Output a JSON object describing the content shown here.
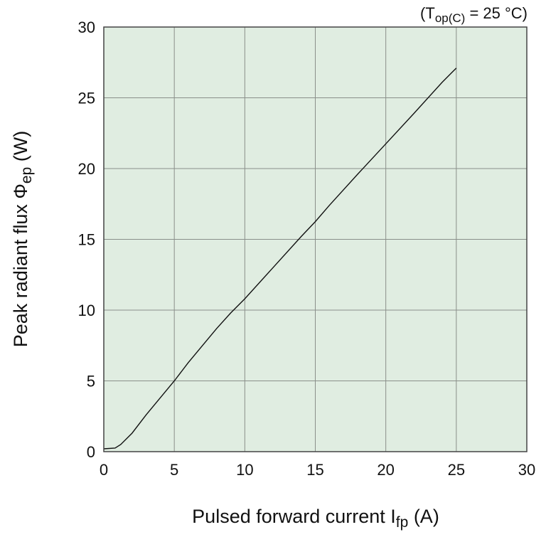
{
  "chart_data": {
    "type": "line",
    "annotation": {
      "prefix": "(T",
      "sub": "op(C)",
      "suffix": " = 25 °C)"
    },
    "xlabel": {
      "main": "Pulsed forward current I",
      "sub": "fp",
      "unit": " (A)"
    },
    "ylabel": {
      "main": "Peak radiant flux Φ",
      "sub": "ep",
      "unit": " (W)"
    },
    "xlim": [
      0,
      30
    ],
    "ylim": [
      0,
      30
    ],
    "xticks": [
      "0",
      "5",
      "10",
      "15",
      "20",
      "25",
      "30"
    ],
    "yticks": [
      "0",
      "5",
      "10",
      "15",
      "20",
      "25",
      "30"
    ],
    "grid": true,
    "colors": {
      "plot_background": "#e0ede1",
      "grid": "#8a8f8a",
      "line": "#111111"
    },
    "series": [
      {
        "x": [
          0,
          0.8,
          1.2,
          2,
          3,
          4,
          5,
          6,
          7,
          8,
          9,
          10,
          12,
          14,
          15,
          16,
          18,
          20,
          22,
          24,
          25
        ],
        "y": [
          0.2,
          0.25,
          0.5,
          1.3,
          2.6,
          3.8,
          5.0,
          6.3,
          7.5,
          8.7,
          9.8,
          10.8,
          13.0,
          15.2,
          16.25,
          17.4,
          19.6,
          21.75,
          23.9,
          26.1,
          27.1
        ]
      }
    ]
  }
}
